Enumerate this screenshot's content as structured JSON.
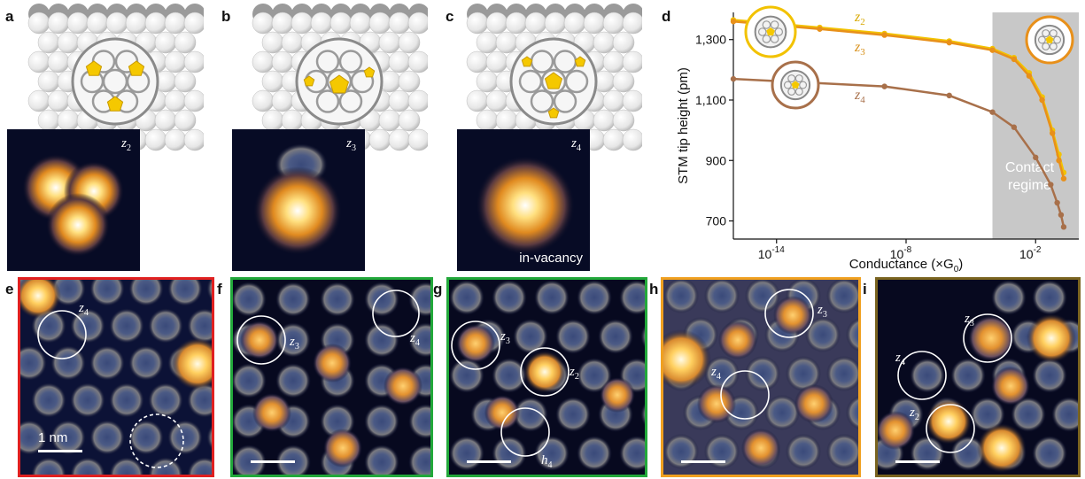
{
  "panels": {
    "a": {
      "label": "a",
      "tag": "z",
      "tag_sub": "2"
    },
    "b": {
      "label": "b",
      "tag": "z",
      "tag_sub": "3"
    },
    "c": {
      "label": "c",
      "tag": "z",
      "tag_sub": "4",
      "caption": "in-vacancy"
    },
    "d": {
      "label": "d"
    },
    "e": {
      "label": "e",
      "border": "#e02020",
      "tags": [
        {
          "t": "z",
          "s": "4"
        }
      ],
      "scale_text": "1 nm"
    },
    "f": {
      "label": "f",
      "border": "#22a83a",
      "tags": [
        {
          "t": "z",
          "s": "3"
        },
        {
          "t": "z",
          "s": "4"
        }
      ]
    },
    "g": {
      "label": "g",
      "border": "#22a83a",
      "tags": [
        {
          "t": "z",
          "s": "3"
        },
        {
          "t": "z",
          "s": "2"
        },
        {
          "t": "h",
          "s": "4"
        }
      ]
    },
    "h": {
      "label": "h",
      "border": "#f0a020",
      "tags": [
        {
          "t": "z",
          "s": "3"
        },
        {
          "t": "z",
          "s": "4"
        }
      ]
    },
    "i": {
      "label": "i",
      "border": "#7a6420",
      "tags": [
        {
          "t": "z",
          "s": "3"
        },
        {
          "t": "z",
          "s": "4"
        },
        {
          "t": "z",
          "s": "2"
        }
      ]
    }
  },
  "chart_data": {
    "type": "line",
    "xlabel": "Conductance (×G",
    "xlabel_sub": "0",
    "xlabel_end": ")",
    "ylabel": "STM tip height (pm)",
    "x_scale": "log",
    "xlim": [
      1e-16,
      1
    ],
    "ylim": [
      640,
      1390
    ],
    "yticks": [
      700,
      900,
      1100,
      1300
    ],
    "ytick_labels": [
      "700",
      "900",
      "1,100",
      "1,300"
    ],
    "xticks": [
      1e-14,
      1e-08,
      0.01
    ],
    "xtick_labels": [
      [
        "10",
        "-14"
      ],
      [
        "10",
        "-8"
      ],
      [
        "10",
        "-2"
      ]
    ],
    "shaded_region": {
      "x_from": 0.0001,
      "x_to": 1,
      "label_line1": "Contact",
      "label_line2": "regime"
    },
    "series": [
      {
        "name": "z2",
        "color": "#f2c200",
        "x": [
          1e-16,
          1e-12,
          1e-09,
          1e-06,
          0.0001,
          0.001,
          0.005,
          0.02,
          0.06,
          0.12,
          0.2
        ],
        "y": [
          1365,
          1340,
          1320,
          1295,
          1270,
          1240,
          1190,
          1110,
          1000,
          920,
          860
        ]
      },
      {
        "name": "z3",
        "color": "#e8901a",
        "x": [
          1e-16,
          1e-12,
          1e-09,
          1e-06,
          0.0001,
          0.001,
          0.005,
          0.02,
          0.06,
          0.12,
          0.2
        ],
        "y": [
          1360,
          1335,
          1315,
          1290,
          1265,
          1235,
          1180,
          1100,
          990,
          900,
          840
        ]
      },
      {
        "name": "z4",
        "color": "#a8704a",
        "x": [
          1e-16,
          1e-09,
          1e-06,
          0.0001,
          0.001,
          0.01,
          0.05,
          0.1,
          0.15,
          0.2
        ],
        "y": [
          1170,
          1145,
          1115,
          1060,
          1010,
          910,
          820,
          760,
          720,
          680
        ]
      }
    ],
    "series_labels": [
      {
        "t": "z",
        "s": "2",
        "color": "#d8a800"
      },
      {
        "t": "z",
        "s": "3",
        "color": "#d8901a"
      },
      {
        "t": "z",
        "s": "4",
        "color": "#a8704a"
      }
    ]
  }
}
